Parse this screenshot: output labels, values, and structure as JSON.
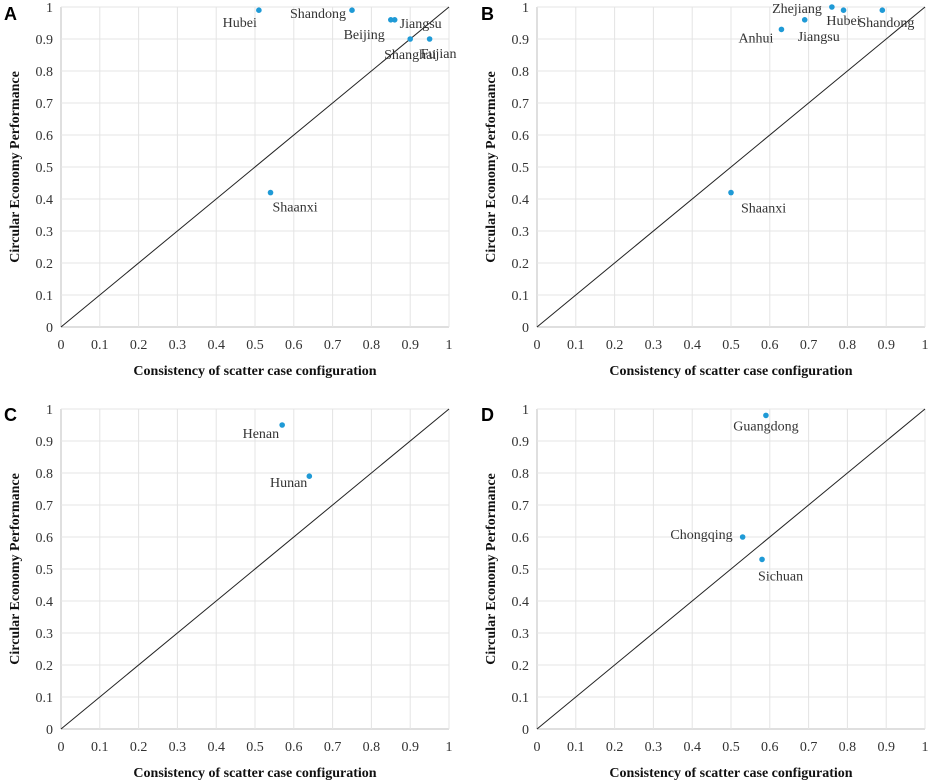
{
  "colors": {
    "point": "#1f9ad6",
    "diagonal": "#222222",
    "grid": "#e4e4e4"
  },
  "axis_ticks": [
    "0",
    "0.1",
    "0.2",
    "0.3",
    "0.4",
    "0.5",
    "0.6",
    "0.7",
    "0.8",
    "0.9",
    "1"
  ],
  "chart_data": [
    {
      "panel": "A",
      "type": "scatter",
      "xlabel": "Consistency of scatter case configuration",
      "ylabel": "Circular Economy Performance",
      "xlim": [
        0,
        1
      ],
      "ylim": [
        0,
        1
      ],
      "reference_line": "y = x",
      "points": [
        {
          "label": "Hubei",
          "x": 0.51,
          "y": 0.99
        },
        {
          "label": "Shandong",
          "x": 0.75,
          "y": 0.99
        },
        {
          "label": "Beijing",
          "x": 0.85,
          "y": 0.96
        },
        {
          "label": "Jiangsu",
          "x": 0.86,
          "y": 0.96
        },
        {
          "label": "Shanghai",
          "x": 0.9,
          "y": 0.9
        },
        {
          "label": "Fujian",
          "x": 0.95,
          "y": 0.9
        },
        {
          "label": "Shaanxi",
          "x": 0.54,
          "y": 0.42
        }
      ]
    },
    {
      "panel": "B",
      "type": "scatter",
      "xlabel": "Consistency of scatter case configuration",
      "ylabel": "Circular Economy Performance",
      "xlim": [
        0,
        1
      ],
      "ylim": [
        0,
        1
      ],
      "reference_line": "y = x",
      "points": [
        {
          "label": "Zhejiang",
          "x": 0.76,
          "y": 1.0
        },
        {
          "label": "Hubei",
          "x": 0.79,
          "y": 0.99
        },
        {
          "label": "Shandong",
          "x": 0.89,
          "y": 0.99
        },
        {
          "label": "Jiangsu",
          "x": 0.69,
          "y": 0.96
        },
        {
          "label": "Anhui",
          "x": 0.63,
          "y": 0.93
        },
        {
          "label": "Shaanxi",
          "x": 0.5,
          "y": 0.42
        }
      ]
    },
    {
      "panel": "C",
      "type": "scatter",
      "xlabel": "Consistency of scatter case configuration",
      "ylabel": "Circular Economy Performance",
      "xlim": [
        0,
        1
      ],
      "ylim": [
        0,
        1
      ],
      "reference_line": "y = x",
      "points": [
        {
          "label": "Henan",
          "x": 0.57,
          "y": 0.95
        },
        {
          "label": "Hunan",
          "x": 0.64,
          "y": 0.79
        }
      ]
    },
    {
      "panel": "D",
      "type": "scatter",
      "xlabel": "Consistency of scatter case configuration",
      "ylabel": "Circular Economy Performance",
      "xlim": [
        0,
        1
      ],
      "ylim": [
        0,
        1
      ],
      "reference_line": "y = x",
      "points": [
        {
          "label": "Guangdong",
          "x": 0.59,
          "y": 0.98
        },
        {
          "label": "Chongqing",
          "x": 0.53,
          "y": 0.6
        },
        {
          "label": "Sichuan",
          "x": 0.58,
          "y": 0.53
        }
      ]
    }
  ]
}
